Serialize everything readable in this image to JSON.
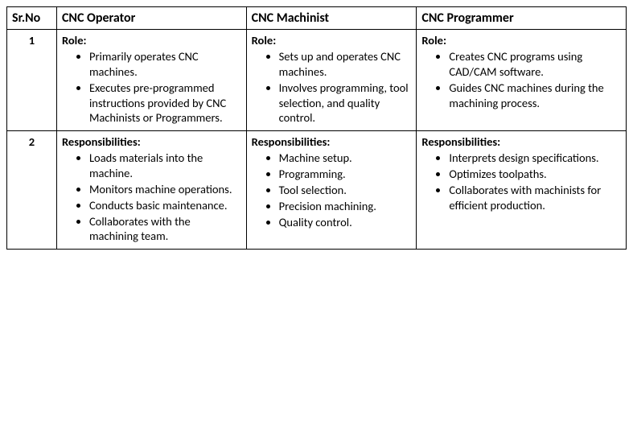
{
  "columns": [
    "Sr.No",
    "CNC Operator",
    "CNC Machinist",
    "CNC Programmer"
  ],
  "colwidths": [
    "62px",
    "236px",
    "212px",
    "261px"
  ],
  "rows": [
    {
      "srno": "1",
      "cells": [
        {
          "title": "Role:",
          "items": [
            "Primarily operates CNC machines.",
            "Executes pre-programmed instructions provided by CNC Machinists or Programmers."
          ]
        },
        {
          "title": "Role:",
          "items": [
            "Sets up and operates CNC machines.",
            "Involves programming, tool selection, and quality control."
          ]
        },
        {
          "title": "Role:",
          "items": [
            "Creates CNC programs using CAD/CAM software.",
            "Guides CNC machines during the machining process."
          ]
        }
      ]
    },
    {
      "srno": "2",
      "cells": [
        {
          "title": "Responsibilities:",
          "items": [
            "Loads materials into the machine.",
            "Monitors machine operations.",
            "Conducts basic maintenance.",
            "Collaborates with the machining team."
          ]
        },
        {
          "title": "Responsibilities:",
          "items": [
            "Machine setup.",
            "Programming.",
            "Tool selection.",
            "Precision machining.",
            "Quality control."
          ]
        },
        {
          "title": "Responsibilities:",
          "items": [
            "Interprets design specifications.",
            "Optimizes toolpaths.",
            "Collaborates with machinists for efficient production."
          ]
        }
      ]
    }
  ]
}
